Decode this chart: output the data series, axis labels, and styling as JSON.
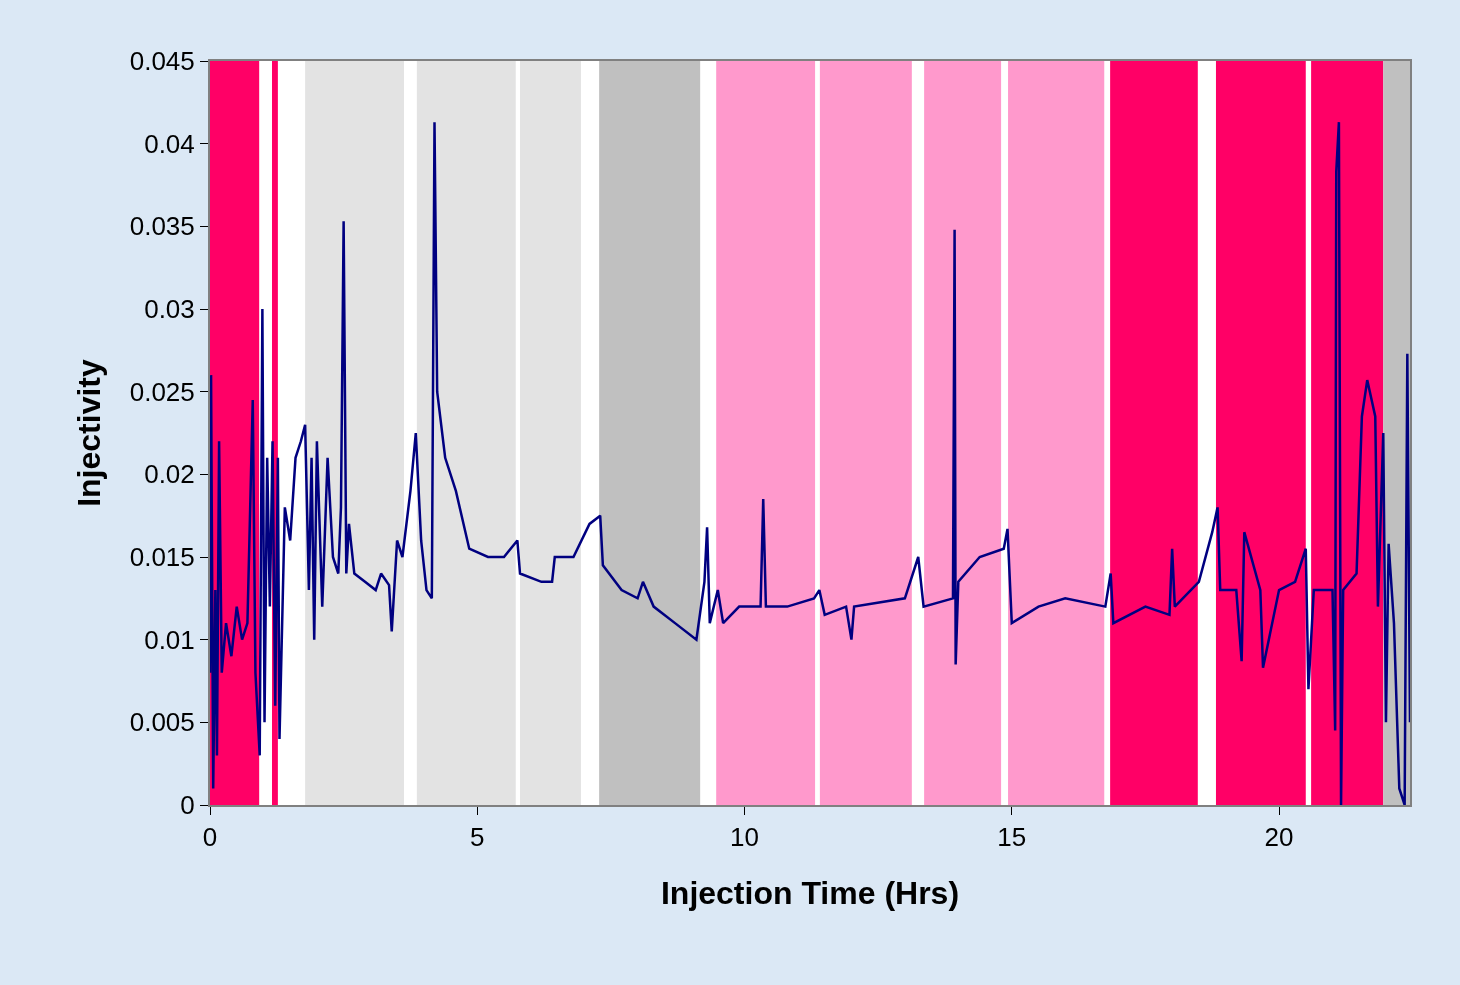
{
  "chart_data": {
    "type": "line",
    "xlabel": "Injection Time (Hrs)",
    "ylabel": "Injectivity",
    "x": [
      0,
      0.02,
      0.06,
      0.1,
      0.13,
      0.17,
      0.22,
      0.3,
      0.4,
      0.5,
      0.6,
      0.7,
      0.8,
      0.85,
      0.93,
      0.98,
      1.02,
      1.07,
      1.12,
      1.17,
      1.22,
      1.27,
      1.3,
      1.4,
      1.5,
      1.6,
      1.7,
      1.78,
      1.85,
      1.9,
      1.95,
      2.0,
      2.1,
      2.2,
      2.3,
      2.4,
      2.45,
      2.5,
      2.55,
      2.6,
      2.7,
      2.9,
      3.1,
      3.2,
      3.35,
      3.4,
      3.5,
      3.6,
      3.75,
      3.85,
      3.95,
      4.05,
      4.15,
      4.2,
      4.25,
      4.4,
      4.6,
      4.85,
      5.2,
      5.5,
      5.75,
      5.8,
      6.2,
      6.4,
      6.45,
      6.8,
      7.1,
      7.3,
      7.35,
      7.7,
      8.0,
      8.1,
      8.3,
      8.7,
      9.1,
      9.25,
      9.3,
      9.35,
      9.5,
      9.6,
      9.9,
      10.3,
      10.35,
      10.4,
      10.8,
      11.3,
      11.4,
      11.5,
      11.9,
      12.0,
      12.05,
      13.0,
      13.25,
      13.35,
      13.9,
      13.93,
      13.95,
      14.0,
      14.4,
      14.85,
      14.92,
      15.0,
      15.5,
      16.0,
      16.75,
      16.85,
      16.9,
      17.5,
      17.95,
      18.0,
      18.05,
      18.5,
      18.75,
      18.85,
      18.9,
      19.2,
      19.3,
      19.35,
      19.65,
      19.7,
      20.0,
      20.3,
      20.5,
      20.55,
      20.65,
      21.0,
      21.05,
      21.07,
      21.12,
      21.16,
      21.2,
      21.45,
      21.55,
      21.65,
      21.8,
      21.85,
      21.95,
      22.0,
      22.05,
      22.15,
      22.25,
      22.35,
      22.4,
      22.45
    ],
    "series": [
      {
        "color": "#000080",
        "values": [
          0.008,
          0.026,
          0.001,
          0.013,
          0.003,
          0.022,
          0.008,
          0.011,
          0.009,
          0.012,
          0.01,
          0.011,
          0.0245,
          0.008,
          0.003,
          0.03,
          0.005,
          0.021,
          0.012,
          0.022,
          0.006,
          0.021,
          0.004,
          0.018,
          0.016,
          0.021,
          0.022,
          0.023,
          0.013,
          0.021,
          0.01,
          0.022,
          0.012,
          0.021,
          0.015,
          0.014,
          0.018,
          0.0353,
          0.014,
          0.017,
          0.014,
          0.0135,
          0.013,
          0.014,
          0.0133,
          0.0105,
          0.016,
          0.015,
          0.019,
          0.0225,
          0.016,
          0.013,
          0.0125,
          0.0413,
          0.025,
          0.021,
          0.019,
          0.0155,
          0.015,
          0.015,
          0.016,
          0.014,
          0.0135,
          0.0135,
          0.015,
          0.015,
          0.017,
          0.0175,
          0.0145,
          0.013,
          0.0125,
          0.0135,
          0.012,
          0.011,
          0.01,
          0.0135,
          0.0168,
          0.011,
          0.013,
          0.011,
          0.012,
          0.012,
          0.0185,
          0.012,
          0.012,
          0.0125,
          0.013,
          0.0115,
          0.012,
          0.01,
          0.012,
          0.0125,
          0.015,
          0.012,
          0.0125,
          0.0348,
          0.0085,
          0.0135,
          0.015,
          0.0155,
          0.0167,
          0.011,
          0.012,
          0.0125,
          0.012,
          0.014,
          0.011,
          0.012,
          0.0115,
          0.0155,
          0.012,
          0.0135,
          0.0165,
          0.018,
          0.013,
          0.013,
          0.0087,
          0.0165,
          0.013,
          0.0083,
          0.013,
          0.0135,
          0.0155,
          0.007,
          0.013,
          0.013,
          0.0045,
          0.0383,
          0.0413,
          0,
          0.013,
          0.014,
          0.0235,
          0.0257,
          0.0235,
          0.012,
          0.0225,
          0.005,
          0.0158,
          0.011,
          0.001,
          0,
          0.0273,
          0.005
        ]
      }
    ],
    "xlim": [
      0,
      22.45
    ],
    "xticks": [
      0,
      5,
      10,
      15,
      20
    ],
    "ylim": [
      0,
      0.045
    ],
    "yticks": [
      0,
      0.005,
      0.01,
      0.015,
      0.02,
      0.025,
      0.03,
      0.035,
      0.04,
      0.045
    ],
    "bands": [
      {
        "axis": "x",
        "from": 0,
        "to": 0.92,
        "color": "#ff0066"
      },
      {
        "axis": "x",
        "from": 1.16,
        "to": 1.27,
        "color": "#ff0066"
      },
      {
        "axis": "x",
        "from": 1.78,
        "to": 3.63,
        "color": "#e3e3e3"
      },
      {
        "axis": "x",
        "from": 3.87,
        "to": 5.72,
        "color": "#e3e3e3"
      },
      {
        "axis": "x",
        "from": 5.8,
        "to": 6.94,
        "color": "#e3e3e3"
      },
      {
        "axis": "x",
        "from": 7.28,
        "to": 9.17,
        "color": "#c0c0c0"
      },
      {
        "axis": "x",
        "from": 9.47,
        "to": 11.32,
        "color": "#ff99cc"
      },
      {
        "axis": "x",
        "from": 11.41,
        "to": 13.13,
        "color": "#ff99cc"
      },
      {
        "axis": "x",
        "from": 13.36,
        "to": 14.8,
        "color": "#ff99cc"
      },
      {
        "axis": "x",
        "from": 14.93,
        "to": 16.73,
        "color": "#ff99cc"
      },
      {
        "axis": "x",
        "from": 16.84,
        "to": 18.48,
        "color": "#ff0066"
      },
      {
        "axis": "x",
        "from": 18.82,
        "to": 20.5,
        "color": "#ff0066"
      },
      {
        "axis": "x",
        "from": 20.6,
        "to": 21.95,
        "color": "#ff0066"
      },
      {
        "axis": "x",
        "from": 21.95,
        "to": 22.45,
        "color": "#c0c0c0"
      }
    ],
    "grid": false,
    "marker": "none",
    "line_style": "solid"
  }
}
